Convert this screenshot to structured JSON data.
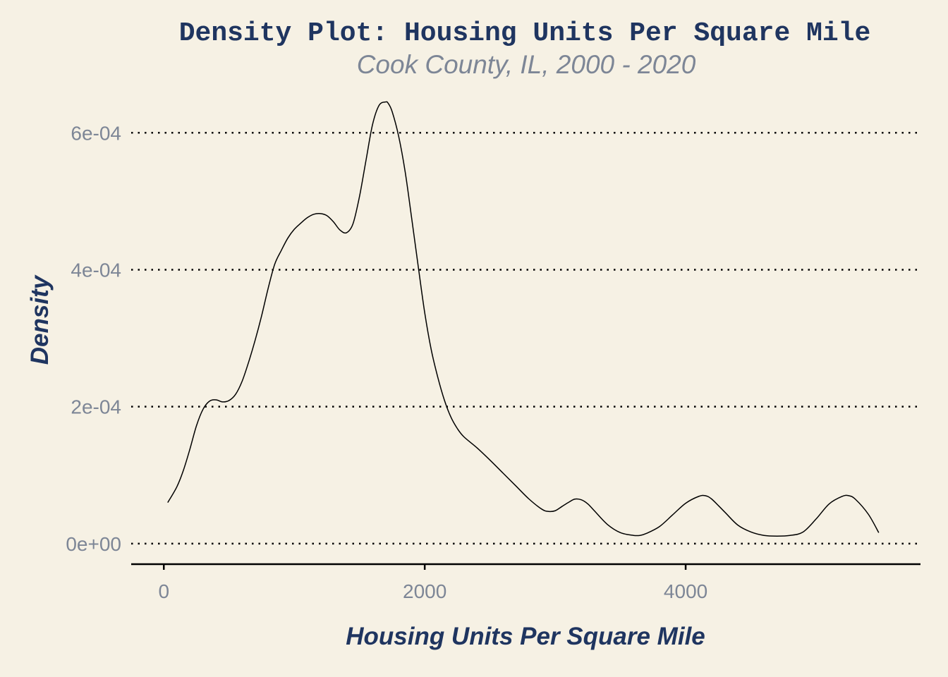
{
  "colors": {
    "background": "#f6f1e4",
    "title": "#1f3560",
    "subtitle": "#7d8696",
    "tick_label": "#7d8696",
    "line": "#000000",
    "grid": "#000000"
  },
  "chart_data": {
    "type": "line",
    "title": "Density Plot: Housing Units Per Square Mile",
    "subtitle": "Cook County, IL, 2000 - 2020",
    "xlabel": "Housing Units Per Square Mile",
    "ylabel": "Density",
    "xlim": [
      -250,
      5800
    ],
    "ylim": [
      -3e-05,
      0.00066
    ],
    "x_ticks": [
      0,
      2000,
      4000
    ],
    "x_tick_labels": [
      "0",
      "2000",
      "4000"
    ],
    "y_ticks": [
      0,
      0.0002,
      0.0004,
      0.0006
    ],
    "y_tick_labels": [
      "0e+00",
      "2e-04",
      "4e-04",
      "6e-04"
    ],
    "grid": "horizontal dotted",
    "legend": "none",
    "series": [
      {
        "x": [
          30,
          100,
          150,
          200,
          250,
          300,
          350,
          400,
          450,
          500,
          550,
          600,
          650,
          700,
          750,
          800,
          850,
          900,
          950,
          1000,
          1050,
          1100,
          1150,
          1200,
          1250,
          1300,
          1350,
          1400,
          1450,
          1500,
          1550,
          1600,
          1650,
          1700,
          1720,
          1750,
          1800,
          1850,
          1900,
          1950,
          2000,
          2050,
          2100,
          2150,
          2200,
          2250,
          2300,
          2400,
          2500,
          2600,
          2700,
          2800,
          2900,
          2950,
          3000,
          3050,
          3100,
          3150,
          3200,
          3250,
          3300,
          3400,
          3500,
          3600,
          3650,
          3700,
          3800,
          3900,
          4000,
          4100,
          4150,
          4200,
          4300,
          4400,
          4500,
          4600,
          4700,
          4800,
          4900,
          5000,
          5100,
          5200,
          5250,
          5300,
          5400,
          5480
        ],
        "y": [
          6e-05,
          8.3e-05,
          0.000107,
          0.000138,
          0.000172,
          0.000196,
          0.000208,
          0.00021,
          0.000207,
          0.000209,
          0.000218,
          0.000237,
          0.000265,
          0.000297,
          0.000333,
          0.000373,
          0.000408,
          0.000428,
          0.000446,
          0.000459,
          0.000468,
          0.000476,
          0.000481,
          0.000482,
          0.000479,
          0.00047,
          0.000458,
          0.000454,
          0.000467,
          0.000507,
          0.00056,
          0.000612,
          0.00064,
          0.000645,
          0.000643,
          0.000631,
          0.000595,
          0.000543,
          0.000475,
          0.000405,
          0.000337,
          0.000283,
          0.000243,
          0.00021,
          0.000185,
          0.000168,
          0.000156,
          0.00014,
          0.000122,
          0.000103,
          8.4e-05,
          6.5e-05,
          5e-05,
          4.7e-05,
          4.8e-05,
          5.4e-05,
          6e-05,
          6.5e-05,
          6.4e-05,
          5.8e-05,
          4.8e-05,
          2.8e-05,
          1.6e-05,
          1.2e-05,
          1.2e-05,
          1.5e-05,
          2.5e-05,
          4.2e-05,
          5.9e-05,
          6.9e-05,
          7e-05,
          6.5e-05,
          4.6e-05,
          2.7e-05,
          1.7e-05,
          1.2e-05,
          1.1e-05,
          1.2e-05,
          1.7e-05,
          3.6e-05,
          5.8e-05,
          6.9e-05,
          7e-05,
          6.5e-05,
          4.3e-05,
          1.6e-05
        ]
      }
    ]
  }
}
